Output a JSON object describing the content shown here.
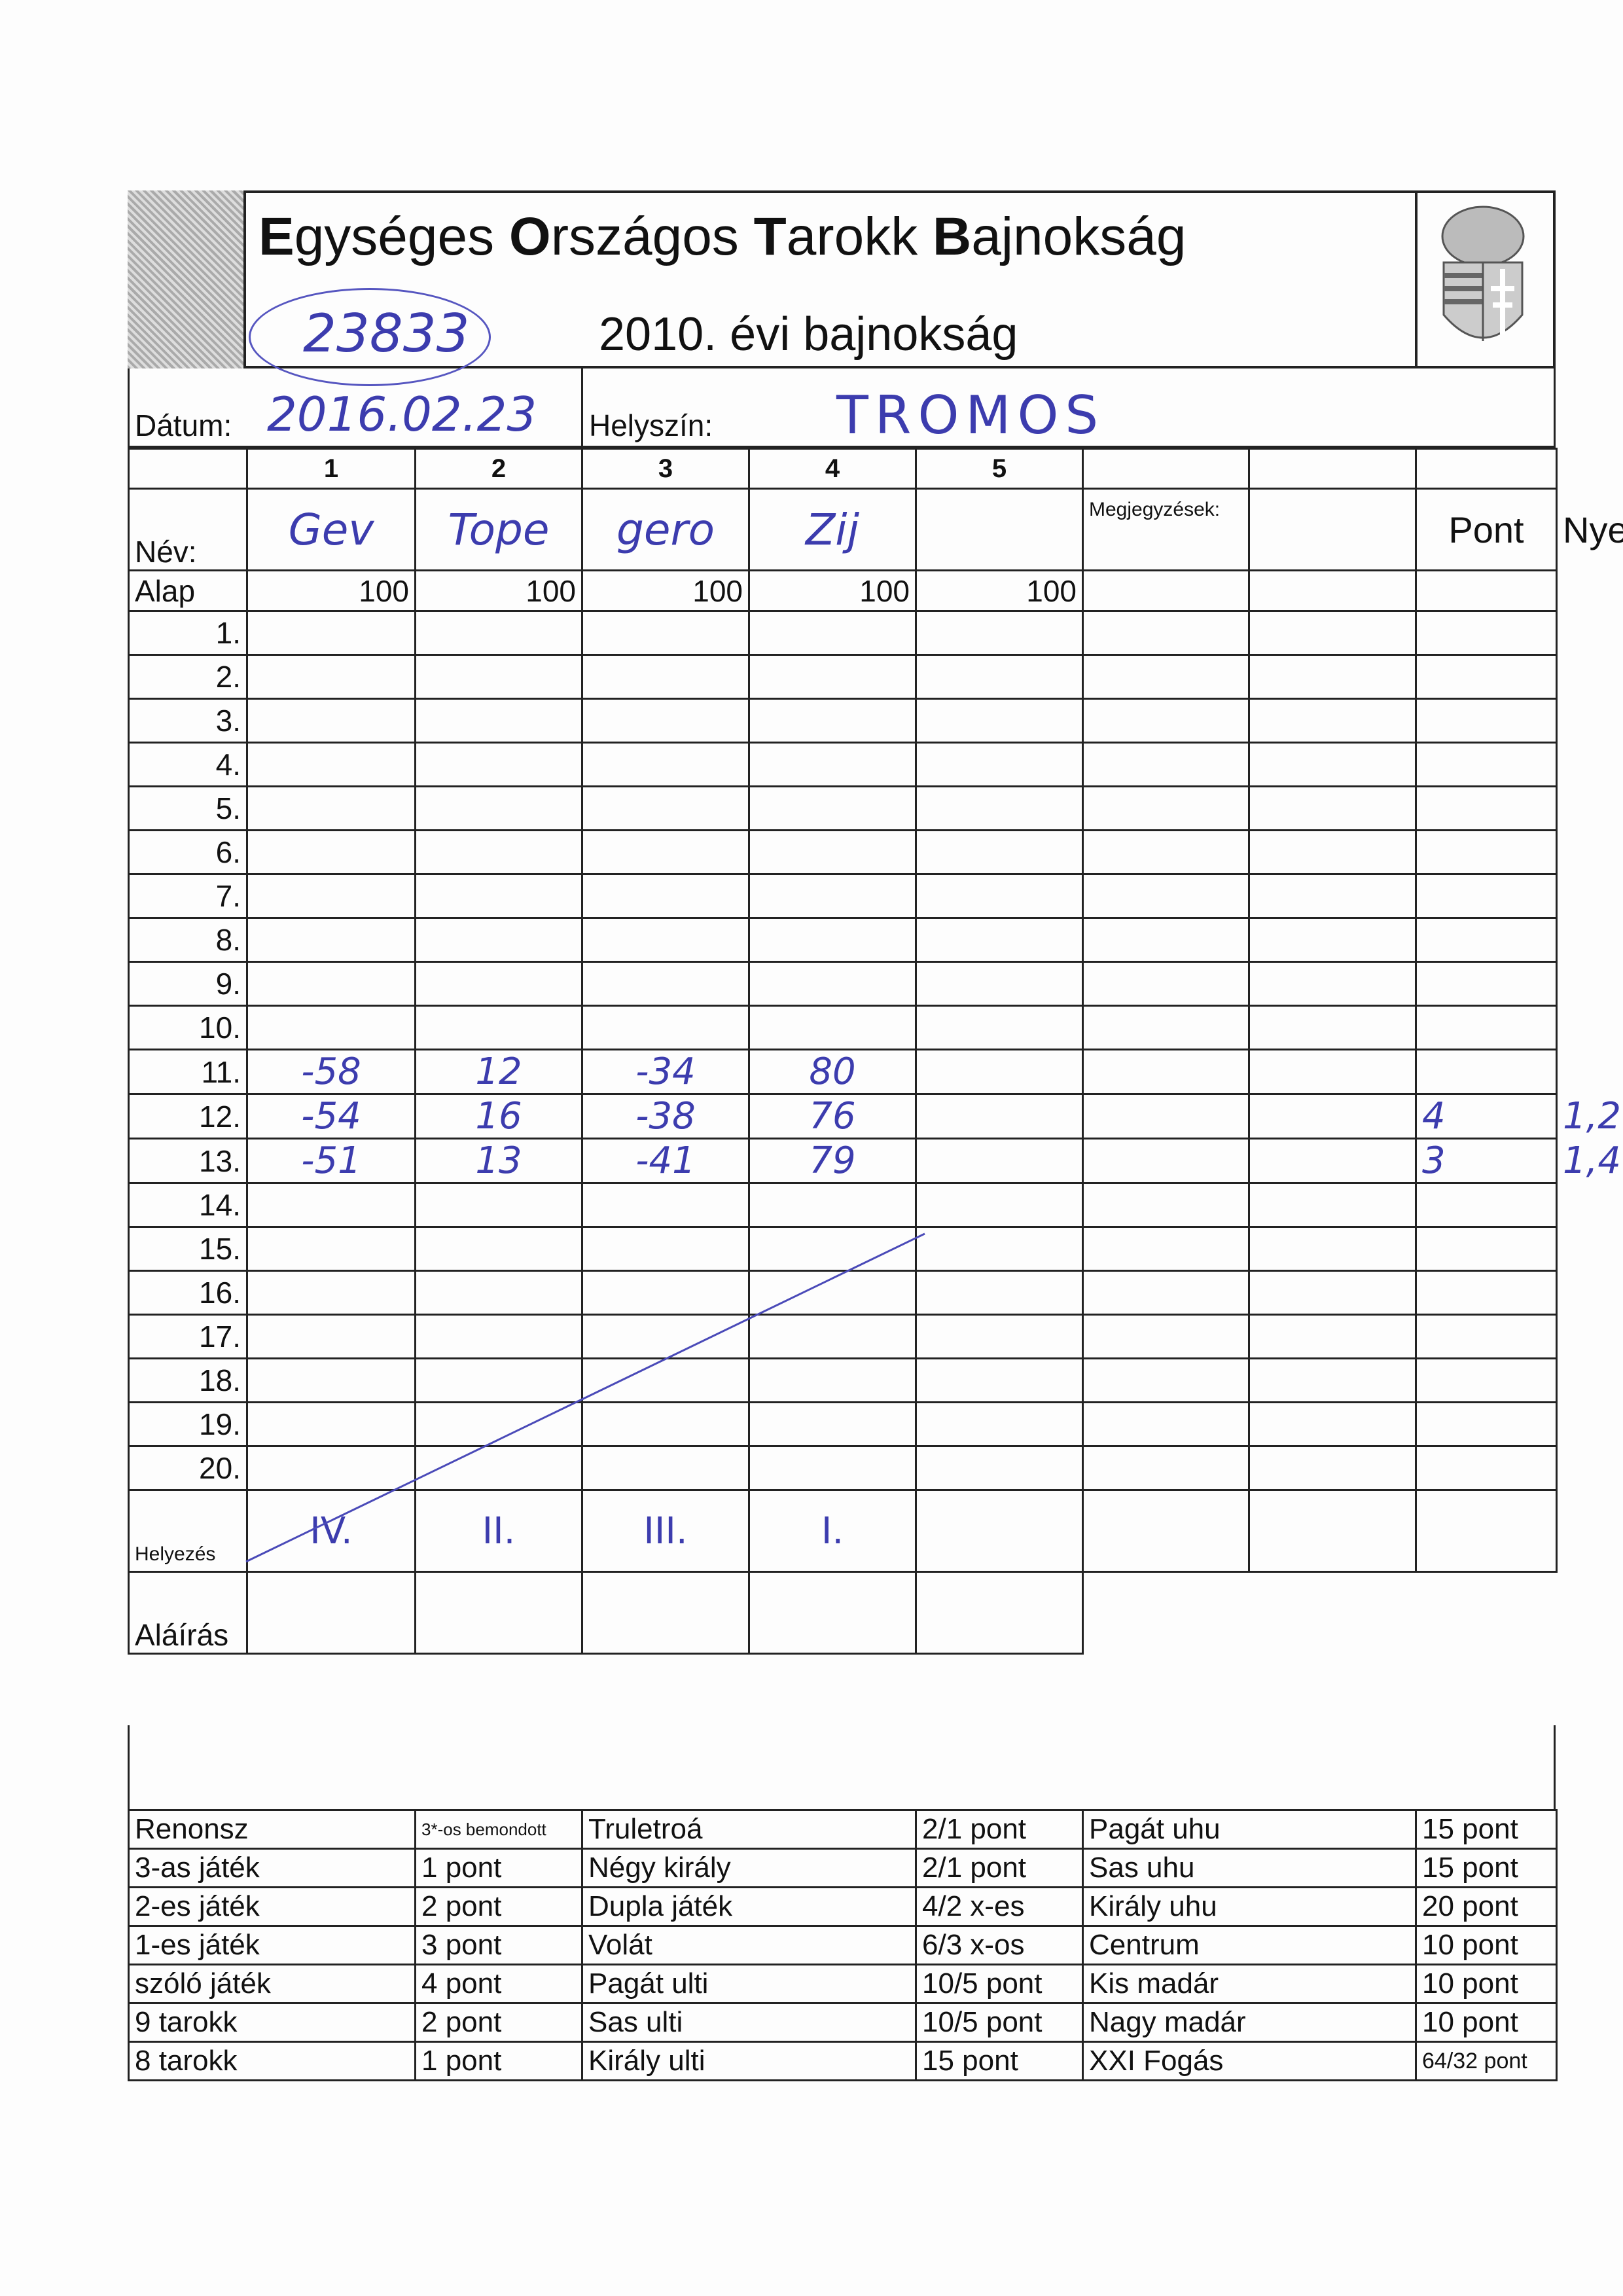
{
  "header": {
    "title_parts": [
      [
        "E",
        "gységes "
      ],
      [
        "O",
        "rszágos "
      ],
      [
        "T",
        "arokk "
      ],
      [
        "B",
        "ajnokság"
      ]
    ],
    "subtitle": "2010. évi bajnokság",
    "serial_number": "23833"
  },
  "date": {
    "label": "Dátum:",
    "value": "2016.02.23"
  },
  "location": {
    "label": "Helyszín:",
    "value": "TROMOS"
  },
  "columns": [
    "1",
    "2",
    "3",
    "4",
    "5"
  ],
  "name_label": "Név:",
  "notes_label": "Megjegyzések:",
  "pont_label": "Pont",
  "nyerte_label": "Nyerte",
  "names": [
    "Gev",
    "Tope",
    "gero",
    "Zij",
    ""
  ],
  "base": {
    "label": "Alap",
    "values": [
      "100",
      "100",
      "100",
      "100",
      "100"
    ]
  },
  "rounds": [
    {
      "label": "1.",
      "values": [
        "",
        "",
        "",
        "",
        ""
      ],
      "pont": "",
      "nyerte": ""
    },
    {
      "label": "2.",
      "values": [
        "",
        "",
        "",
        "",
        ""
      ],
      "pont": "",
      "nyerte": ""
    },
    {
      "label": "3.",
      "values": [
        "",
        "",
        "",
        "",
        ""
      ],
      "pont": "",
      "nyerte": ""
    },
    {
      "label": "4.",
      "values": [
        "",
        "",
        "",
        "",
        ""
      ],
      "pont": "",
      "nyerte": ""
    },
    {
      "label": "5.",
      "values": [
        "",
        "",
        "",
        "",
        ""
      ],
      "pont": "",
      "nyerte": ""
    },
    {
      "label": "6.",
      "values": [
        "",
        "",
        "",
        "",
        ""
      ],
      "pont": "",
      "nyerte": ""
    },
    {
      "label": "7.",
      "values": [
        "",
        "",
        "",
        "",
        ""
      ],
      "pont": "",
      "nyerte": ""
    },
    {
      "label": "8.",
      "values": [
        "",
        "",
        "",
        "",
        ""
      ],
      "pont": "",
      "nyerte": ""
    },
    {
      "label": "9.",
      "values": [
        "",
        "",
        "",
        "",
        ""
      ],
      "pont": "",
      "nyerte": ""
    },
    {
      "label": "10.",
      "values": [
        "",
        "",
        "",
        "",
        ""
      ],
      "pont": "",
      "nyerte": ""
    },
    {
      "label": "11.",
      "values": [
        "-58",
        "12",
        "-34",
        "80",
        ""
      ],
      "pont": "",
      "nyerte": ""
    },
    {
      "label": "12.",
      "values": [
        "-54",
        "16",
        "-38",
        "76",
        ""
      ],
      "pont": "4",
      "nyerte": "1,2"
    },
    {
      "label": "13.",
      "values": [
        "-51",
        "13",
        "-41",
        "79",
        ""
      ],
      "pont": "3",
      "nyerte": "1,4"
    },
    {
      "label": "14.",
      "values": [
        "",
        "",
        "",
        "",
        ""
      ],
      "pont": "",
      "nyerte": ""
    },
    {
      "label": "15.",
      "values": [
        "",
        "",
        "",
        "",
        ""
      ],
      "pont": "",
      "nyerte": ""
    },
    {
      "label": "16.",
      "values": [
        "",
        "",
        "",
        "",
        ""
      ],
      "pont": "",
      "nyerte": ""
    },
    {
      "label": "17.",
      "values": [
        "",
        "",
        "",
        "",
        ""
      ],
      "pont": "",
      "nyerte": ""
    },
    {
      "label": "18.",
      "values": [
        "",
        "",
        "",
        "",
        ""
      ],
      "pont": "",
      "nyerte": ""
    },
    {
      "label": "19.",
      "values": [
        "",
        "",
        "",
        "",
        ""
      ],
      "pont": "",
      "nyerte": ""
    },
    {
      "label": "20.",
      "values": [
        "",
        "",
        "",
        "",
        ""
      ],
      "pont": "",
      "nyerte": ""
    }
  ],
  "placement": {
    "label": "Helyezés",
    "values": [
      "IV.",
      "II.",
      "III.",
      "I.",
      ""
    ]
  },
  "signature": {
    "label": "Aláírás"
  },
  "rules": [
    [
      "Renonsz",
      "3*-os bemondott",
      "Truletroá",
      "2/1 pont",
      "Pagát uhu",
      "15 pont"
    ],
    [
      "3-as játék",
      "1 pont",
      "Négy király",
      "2/1 pont",
      "Sas uhu",
      "15 pont"
    ],
    [
      "2-es játék",
      "2 pont",
      "Dupla játék",
      "4/2 x-es",
      "Király uhu",
      "20 pont"
    ],
    [
      "1-es játék",
      "3 pont",
      "Volát",
      "6/3 x-os",
      "Centrum",
      "10 pont"
    ],
    [
      "szóló játék",
      "4 pont",
      "Pagát ulti",
      "10/5 pont",
      "Kis madár",
      "10 pont"
    ],
    [
      "9 tarokk",
      "2 pont",
      "Sas ulti",
      "10/5 pont",
      "Nagy madár",
      "10 pont"
    ],
    [
      "8 tarokk",
      "1 pont",
      "Király ulti",
      "15 pont",
      "XXI Fogás",
      "64/32 pont"
    ]
  ],
  "ink_color": "#3c3cae"
}
